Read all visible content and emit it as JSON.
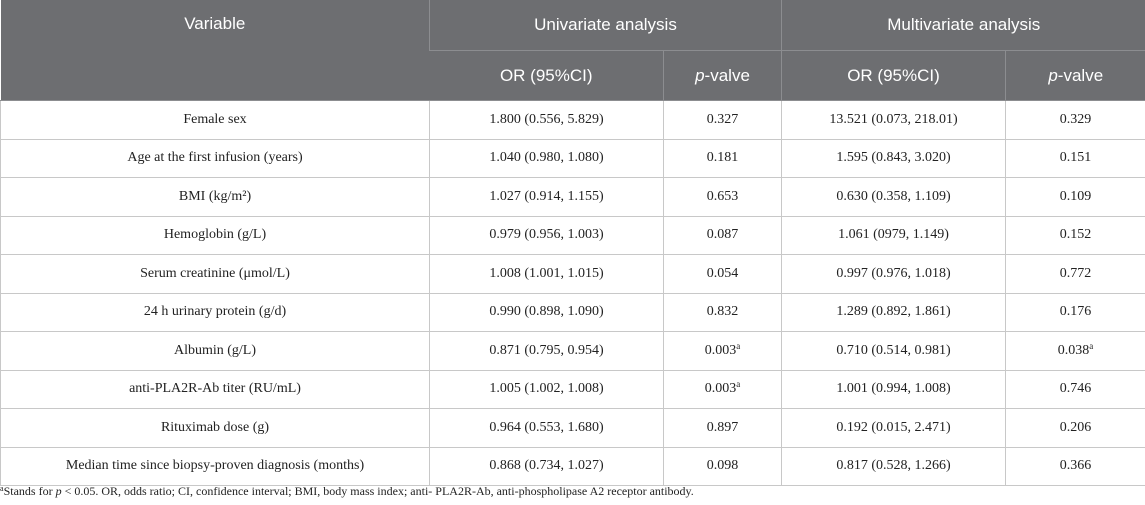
{
  "header": {
    "variable": "Variable",
    "univariate": "Univariate analysis",
    "multivariate": "Multivariate analysis",
    "or_ci": "OR (95%CI)",
    "p_italic": "p",
    "p_rest": "-valve"
  },
  "rows": [
    {
      "variable": "Female sex",
      "uni_or": "1.800 (0.556, 5.829)",
      "uni_p": "0.327",
      "uni_sup": "",
      "multi_or": "13.521 (0.073, 218.01)",
      "multi_p": "0.329",
      "multi_sup": ""
    },
    {
      "variable": "Age at the first infusion (years)",
      "uni_or": "1.040 (0.980, 1.080)",
      "uni_p": "0.181",
      "uni_sup": "",
      "multi_or": "1.595 (0.843, 3.020)",
      "multi_p": "0.151",
      "multi_sup": ""
    },
    {
      "variable": "BMI (kg/m²)",
      "uni_or": "1.027 (0.914, 1.155)",
      "uni_p": "0.653",
      "uni_sup": "",
      "multi_or": "0.630 (0.358, 1.109)",
      "multi_p": "0.109",
      "multi_sup": ""
    },
    {
      "variable": "Hemoglobin (g/L)",
      "uni_or": "0.979 (0.956, 1.003)",
      "uni_p": "0.087",
      "uni_sup": "",
      "multi_or": "1.061 (0979, 1.149)",
      "multi_p": "0.152",
      "multi_sup": ""
    },
    {
      "variable": "Serum creatinine (μmol/L)",
      "uni_or": "1.008 (1.001, 1.015)",
      "uni_p": "0.054",
      "uni_sup": "",
      "multi_or": "0.997 (0.976, 1.018)",
      "multi_p": "0.772",
      "multi_sup": ""
    },
    {
      "variable": "24 h urinary protein (g/d)",
      "uni_or": "0.990 (0.898, 1.090)",
      "uni_p": "0.832",
      "uni_sup": "",
      "multi_or": "1.289 (0.892, 1.861)",
      "multi_p": "0.176",
      "multi_sup": ""
    },
    {
      "variable": "Albumin (g/L)",
      "uni_or": "0.871 (0.795, 0.954)",
      "uni_p": "0.003",
      "uni_sup": "a",
      "multi_or": "0.710 (0.514, 0.981)",
      "multi_p": "0.038",
      "multi_sup": "a"
    },
    {
      "variable": "anti-PLA2R-Ab titer (RU/mL)",
      "uni_or": "1.005 (1.002, 1.008)",
      "uni_p": "0.003",
      "uni_sup": "a",
      "multi_or": "1.001 (0.994, 1.008)",
      "multi_p": "0.746",
      "multi_sup": ""
    },
    {
      "variable": "Rituximab dose (g)",
      "uni_or": "0.964 (0.553, 1.680)",
      "uni_p": "0.897",
      "uni_sup": "",
      "multi_or": "0.192 (0.015, 2.471)",
      "multi_p": "0.206",
      "multi_sup": ""
    },
    {
      "variable": "Median time since biopsy-proven diagnosis (months)",
      "uni_or": "0.868 (0.734, 1.027)",
      "uni_p": "0.098",
      "uni_sup": "",
      "multi_or": "0.817 (0.528, 1.266)",
      "multi_p": "0.366",
      "multi_sup": ""
    }
  ],
  "footnote": {
    "marker": "a",
    "lead": "Stands for ",
    "p": "p",
    "rest": " < 0.05. OR, odds ratio; CI, confidence interval; BMI, body mass index; anti- PLA2R-Ab, anti-phospholipase A2 receptor antibody."
  }
}
